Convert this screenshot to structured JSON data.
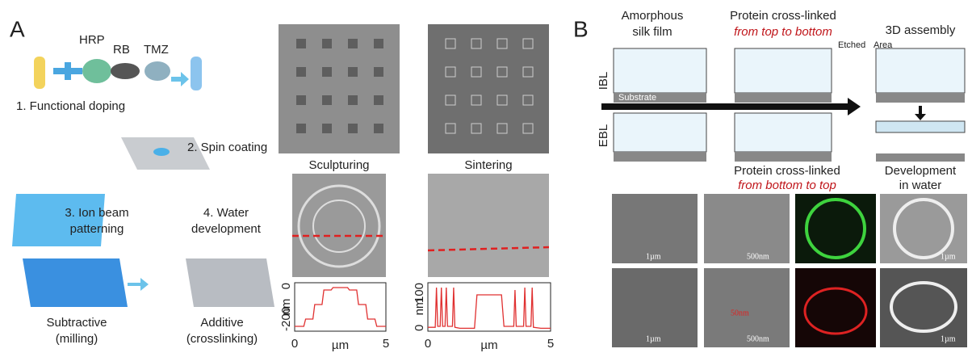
{
  "panel_a": {
    "label": "A",
    "reagents": [
      "HRP",
      "RB",
      "TMZ"
    ],
    "steps": [
      [
        "1. Functional doping"
      ],
      [
        "2. Spin coating"
      ],
      [
        "3. Ion beam",
        "patterning"
      ],
      [
        "4. Water",
        "development"
      ]
    ],
    "outcomes": [
      [
        "Subtractive",
        "(milling)"
      ],
      [
        "Additive",
        "(crosslinking)"
      ]
    ],
    "sem_titles": [
      "Sculpturing",
      "Sintering"
    ]
  },
  "panel_b": {
    "label": "B",
    "columns": {
      "amorphous": [
        "Amorphous",
        "silk film"
      ],
      "top_to_bottom": [
        "Protein cross-linked",
        "from top to bottom"
      ],
      "assembly": [
        "3D assembly"
      ],
      "bottom_to_top": [
        "Protein cross-linked",
        "from bottom to top"
      ],
      "development": [
        "Development",
        "in water"
      ]
    },
    "callouts": [
      "Etched",
      "Area"
    ],
    "rows": [
      "IBL",
      "EBL"
    ],
    "substrate": "Substrate",
    "scale_bars": [
      "1µm",
      "500nm",
      "1µm",
      "1µm",
      "50nm",
      "500nm",
      "1µm"
    ]
  },
  "chart_data": [
    {
      "type": "line",
      "x_label": "µm",
      "y_label": "nm",
      "xlim": [
        0,
        5
      ],
      "xticks": [
        0,
        5
      ],
      "ylim": [
        -200,
        0
      ],
      "yticks": [
        -200,
        0
      ],
      "color": "#e03030",
      "x": [
        0,
        0.5,
        0.6,
        1.0,
        1.1,
        1.5,
        1.6,
        2.0,
        2.1,
        2.9,
        3.0,
        3.4,
        3.5,
        3.9,
        4.0,
        4.4,
        4.5,
        5
      ],
      "values": [
        -180,
        -180,
        -150,
        -150,
        -90,
        -90,
        -30,
        -30,
        -20,
        -20,
        -30,
        -30,
        -90,
        -90,
        -150,
        -150,
        -180,
        -180
      ]
    },
    {
      "type": "line",
      "x_label": "µm",
      "y_label": "nm",
      "xlim": [
        0,
        5
      ],
      "xticks": [
        0,
        5
      ],
      "ylim": [
        0,
        100
      ],
      "yticks": [
        0,
        100
      ],
      "color": "#e03030",
      "x": [
        0,
        0.3,
        0.35,
        0.4,
        0.5,
        0.55,
        0.6,
        0.7,
        0.75,
        0.8,
        1.0,
        1.05,
        1.1,
        1.3,
        1.9,
        2.0,
        3.0,
        3.1,
        3.5,
        3.55,
        3.6,
        3.9,
        3.95,
        4.0,
        4.2,
        4.25,
        4.3,
        4.6,
        5
      ],
      "values": [
        8,
        8,
        90,
        10,
        10,
        90,
        10,
        10,
        90,
        10,
        10,
        90,
        8,
        6,
        6,
        75,
        75,
        10,
        10,
        85,
        10,
        10,
        90,
        10,
        10,
        90,
        8,
        6,
        6
      ]
    }
  ]
}
